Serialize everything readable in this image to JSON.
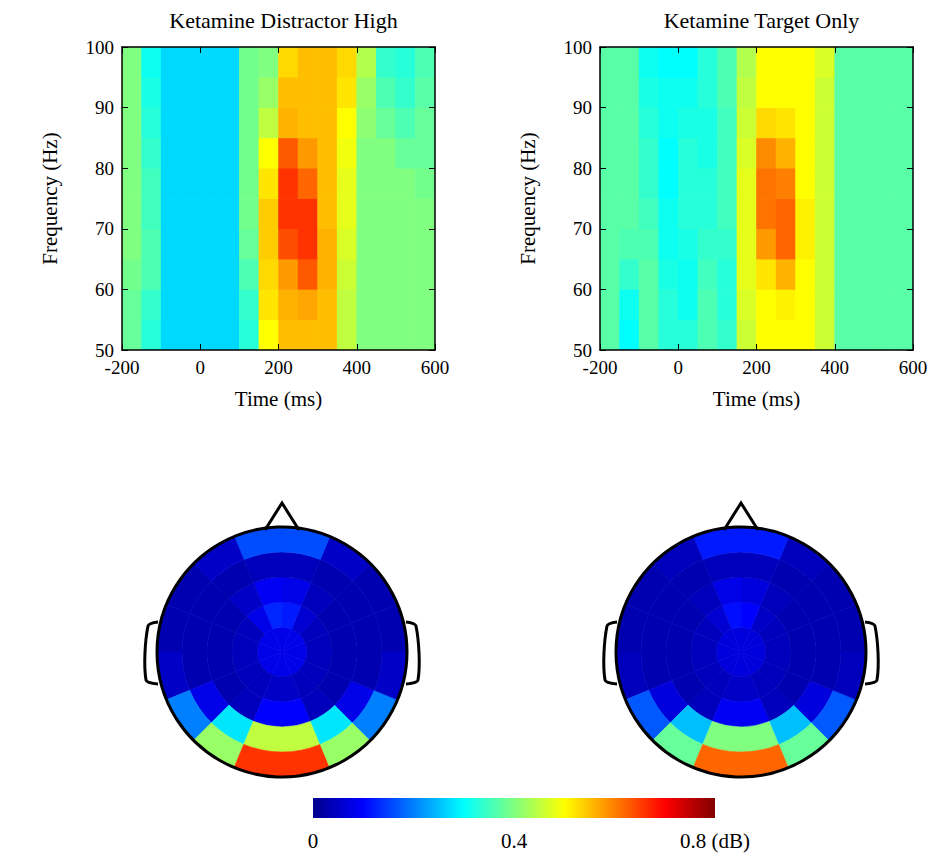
{
  "chart_data": [
    {
      "type": "heatmap",
      "title": "Ketamine Distractor High",
      "xlabel": "Time (ms)",
      "ylabel": "Frequency (Hz)",
      "xlim": [
        -200,
        600
      ],
      "ylim": [
        50,
        100
      ],
      "xticks": [
        -200,
        0,
        200,
        400,
        600
      ],
      "yticks": [
        50,
        60,
        70,
        80,
        90,
        100
      ],
      "x_edges": [
        -200,
        -150,
        -100,
        -50,
        0,
        50,
        100,
        150,
        200,
        250,
        300,
        350,
        400,
        450,
        500,
        550,
        600
      ],
      "y_edges": [
        50,
        55,
        60,
        65,
        70,
        75,
        80,
        85,
        90,
        95,
        100
      ],
      "cells": [
        [
          0.38,
          0.33,
          0.27,
          0.27,
          0.27,
          0.27,
          0.33,
          0.5,
          0.55,
          0.55,
          0.55,
          0.45,
          0.4,
          0.4,
          0.4,
          0.4
        ],
        [
          0.38,
          0.34,
          0.27,
          0.27,
          0.27,
          0.27,
          0.34,
          0.52,
          0.56,
          0.57,
          0.55,
          0.45,
          0.4,
          0.4,
          0.4,
          0.4
        ],
        [
          0.39,
          0.36,
          0.27,
          0.27,
          0.27,
          0.27,
          0.36,
          0.53,
          0.58,
          0.63,
          0.56,
          0.46,
          0.4,
          0.4,
          0.4,
          0.4
        ],
        [
          0.4,
          0.36,
          0.27,
          0.27,
          0.27,
          0.27,
          0.38,
          0.54,
          0.64,
          0.66,
          0.56,
          0.47,
          0.4,
          0.4,
          0.4,
          0.4
        ],
        [
          0.4,
          0.35,
          0.27,
          0.27,
          0.27,
          0.27,
          0.39,
          0.54,
          0.66,
          0.66,
          0.55,
          0.48,
          0.4,
          0.4,
          0.4,
          0.4
        ],
        [
          0.4,
          0.35,
          0.27,
          0.27,
          0.27,
          0.27,
          0.39,
          0.52,
          0.66,
          0.62,
          0.55,
          0.48,
          0.4,
          0.4,
          0.4,
          0.39
        ],
        [
          0.4,
          0.34,
          0.27,
          0.27,
          0.27,
          0.27,
          0.39,
          0.5,
          0.63,
          0.58,
          0.55,
          0.49,
          0.4,
          0.4,
          0.38,
          0.38
        ],
        [
          0.4,
          0.33,
          0.27,
          0.27,
          0.27,
          0.27,
          0.39,
          0.45,
          0.56,
          0.55,
          0.55,
          0.5,
          0.41,
          0.38,
          0.36,
          0.38
        ],
        [
          0.4,
          0.32,
          0.27,
          0.27,
          0.27,
          0.27,
          0.39,
          0.42,
          0.55,
          0.55,
          0.55,
          0.52,
          0.42,
          0.36,
          0.34,
          0.37
        ],
        [
          0.4,
          0.31,
          0.27,
          0.27,
          0.27,
          0.27,
          0.39,
          0.4,
          0.53,
          0.55,
          0.55,
          0.53,
          0.44,
          0.34,
          0.33,
          0.36
        ]
      ]
    },
    {
      "type": "heatmap",
      "title": "Ketamine Target Only",
      "xlabel": "Time (ms)",
      "ylabel": "Frequency (Hz)",
      "xlim": [
        -200,
        600
      ],
      "ylim": [
        50,
        100
      ],
      "xticks": [
        -200,
        0,
        200,
        400,
        600
      ],
      "yticks": [
        50,
        60,
        70,
        80,
        90,
        100
      ],
      "x_edges": [
        -200,
        -150,
        -100,
        -50,
        0,
        50,
        100,
        150,
        200,
        250,
        300,
        350,
        400,
        450,
        500,
        550,
        600
      ],
      "y_edges": [
        50,
        55,
        60,
        65,
        70,
        75,
        80,
        85,
        90,
        95,
        100
      ],
      "cells": [
        [
          0.37,
          0.3,
          0.37,
          0.33,
          0.33,
          0.36,
          0.34,
          0.46,
          0.5,
          0.5,
          0.5,
          0.46,
          0.37,
          0.37,
          0.37,
          0.37
        ],
        [
          0.37,
          0.31,
          0.37,
          0.33,
          0.31,
          0.36,
          0.33,
          0.47,
          0.5,
          0.51,
          0.5,
          0.46,
          0.37,
          0.37,
          0.37,
          0.37
        ],
        [
          0.37,
          0.34,
          0.37,
          0.32,
          0.31,
          0.35,
          0.33,
          0.48,
          0.52,
          0.56,
          0.5,
          0.46,
          0.37,
          0.37,
          0.37,
          0.37
        ],
        [
          0.37,
          0.36,
          0.36,
          0.31,
          0.32,
          0.34,
          0.34,
          0.48,
          0.58,
          0.62,
          0.51,
          0.46,
          0.37,
          0.37,
          0.37,
          0.37
        ],
        [
          0.37,
          0.37,
          0.35,
          0.31,
          0.33,
          0.33,
          0.35,
          0.48,
          0.61,
          0.62,
          0.51,
          0.46,
          0.37,
          0.37,
          0.37,
          0.37
        ],
        [
          0.37,
          0.37,
          0.34,
          0.3,
          0.33,
          0.33,
          0.35,
          0.48,
          0.61,
          0.6,
          0.5,
          0.46,
          0.37,
          0.37,
          0.37,
          0.37
        ],
        [
          0.37,
          0.37,
          0.34,
          0.3,
          0.33,
          0.32,
          0.35,
          0.47,
          0.59,
          0.56,
          0.5,
          0.46,
          0.37,
          0.37,
          0.37,
          0.37
        ],
        [
          0.37,
          0.37,
          0.33,
          0.31,
          0.32,
          0.32,
          0.35,
          0.46,
          0.53,
          0.52,
          0.5,
          0.46,
          0.37,
          0.37,
          0.37,
          0.37
        ],
        [
          0.37,
          0.37,
          0.32,
          0.31,
          0.31,
          0.33,
          0.36,
          0.45,
          0.5,
          0.5,
          0.5,
          0.46,
          0.37,
          0.37,
          0.37,
          0.37
        ],
        [
          0.37,
          0.37,
          0.31,
          0.3,
          0.3,
          0.33,
          0.36,
          0.44,
          0.5,
          0.5,
          0.5,
          0.47,
          0.37,
          0.37,
          0.37,
          0.37
        ]
      ]
    },
    {
      "type": "topomap",
      "tick_labels": false,
      "r_edges": [
        0,
        0.2,
        0.4,
        0.6,
        0.8,
        1
      ],
      "angle_edges": [
        0,
        22.5,
        45,
        67.5,
        90,
        112.5,
        135,
        157.5,
        180,
        202.5,
        225,
        247.5,
        270,
        292.5,
        315,
        337.5,
        360
      ],
      "cells": [
        [
          0.08,
          0.08,
          0.08,
          0.08,
          0.08,
          0.08,
          0.08,
          0.08,
          0.08,
          0.08,
          0.08,
          0.08,
          0.08,
          0.08,
          0.08,
          0.08
        ],
        [
          0.04,
          0.04,
          0.06,
          0.12,
          0.13,
          0.08,
          0.04,
          0.04,
          0.04,
          0.04,
          0.04,
          0.05,
          0.05,
          0.04,
          0.04,
          0.04
        ],
        [
          0.03,
          0.03,
          0.04,
          0.08,
          0.09,
          0.05,
          0.03,
          0.03,
          0.03,
          0.03,
          0.04,
          0.1,
          0.1,
          0.04,
          0.03,
          0.03
        ],
        [
          0.03,
          0.03,
          0.03,
          0.04,
          0.04,
          0.03,
          0.03,
          0.03,
          0.03,
          0.08,
          0.28,
          0.45,
          0.45,
          0.28,
          0.08,
          0.03
        ],
        [
          0.03,
          0.03,
          0.05,
          0.16,
          0.16,
          0.05,
          0.03,
          0.03,
          0.05,
          0.2,
          0.42,
          0.66,
          0.66,
          0.42,
          0.2,
          0.05
        ]
      ]
    },
    {
      "type": "topomap",
      "tick_labels": false,
      "r_edges": [
        0,
        0.2,
        0.4,
        0.6,
        0.8,
        1
      ],
      "angle_edges": [
        0,
        22.5,
        45,
        67.5,
        90,
        112.5,
        135,
        157.5,
        180,
        202.5,
        225,
        247.5,
        270,
        292.5,
        315,
        337.5,
        360
      ],
      "cells": [
        [
          0.07,
          0.07,
          0.07,
          0.07,
          0.07,
          0.07,
          0.07,
          0.07,
          0.07,
          0.07,
          0.07,
          0.07,
          0.07,
          0.07,
          0.07,
          0.07
        ],
        [
          0.04,
          0.04,
          0.05,
          0.1,
          0.11,
          0.06,
          0.04,
          0.04,
          0.04,
          0.04,
          0.04,
          0.05,
          0.05,
          0.04,
          0.04,
          0.04
        ],
        [
          0.03,
          0.03,
          0.04,
          0.07,
          0.08,
          0.04,
          0.03,
          0.03,
          0.03,
          0.03,
          0.04,
          0.09,
          0.09,
          0.04,
          0.03,
          0.03
        ],
        [
          0.03,
          0.03,
          0.03,
          0.04,
          0.04,
          0.03,
          0.03,
          0.03,
          0.03,
          0.07,
          0.25,
          0.4,
          0.4,
          0.25,
          0.07,
          0.03
        ],
        [
          0.03,
          0.03,
          0.04,
          0.12,
          0.12,
          0.04,
          0.03,
          0.03,
          0.04,
          0.17,
          0.38,
          0.62,
          0.62,
          0.38,
          0.17,
          0.04
        ]
      ]
    },
    {
      "type": "colorbar",
      "xlim": [
        0,
        0.8
      ],
      "xticks": [
        0,
        0.4,
        {
          "value": 0.8,
          "label": "0.8 (dB)"
        }
      ]
    }
  ]
}
